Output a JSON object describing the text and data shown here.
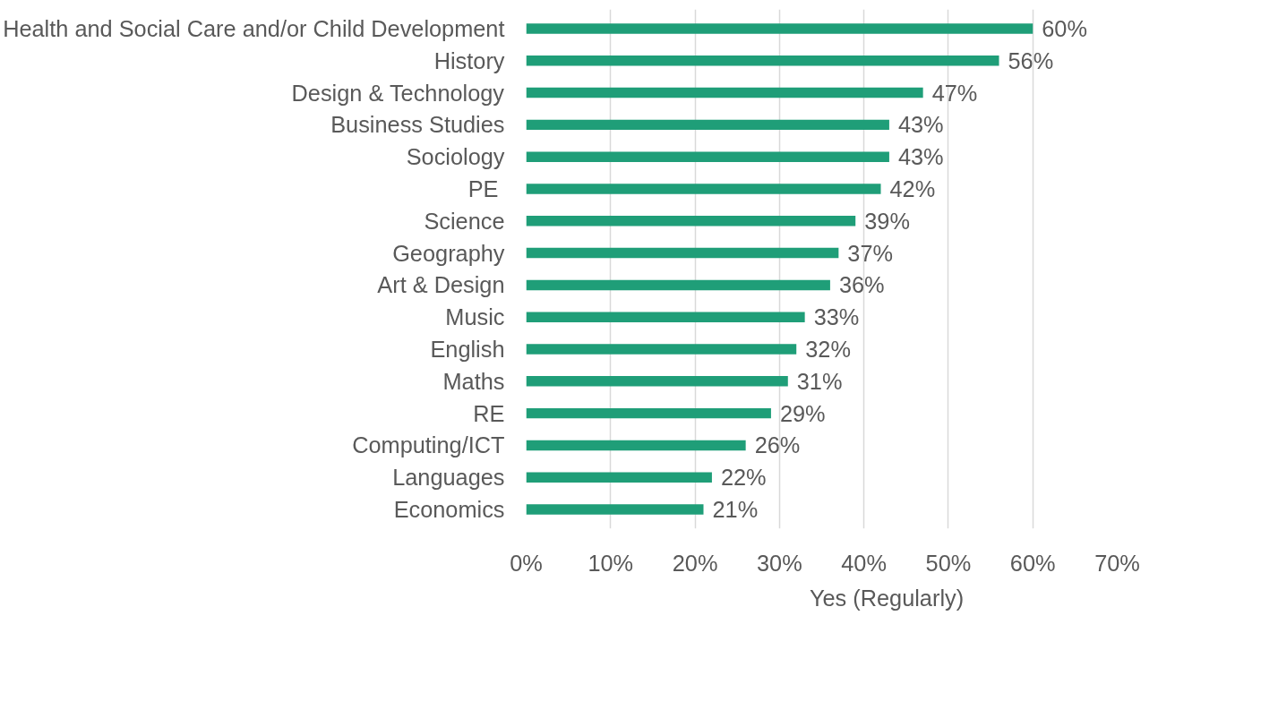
{
  "chart_data": {
    "type": "bar",
    "orientation": "horizontal",
    "categories": [
      "Health and Social Care and/or Child Development",
      "History",
      "Design & Technology",
      "Business Studies",
      "Sociology",
      "PE ",
      "Science",
      "Geography",
      "Art & Design",
      "Music",
      "English",
      "Maths",
      "RE",
      "Computing/ICT",
      "Languages",
      "Economics"
    ],
    "series": [
      {
        "name": "Yes (Regularly)",
        "color": "#1f9e78",
        "values": [
          60,
          56,
          47,
          43,
          43,
          42,
          39,
          37,
          36,
          33,
          32,
          31,
          29,
          26,
          22,
          21
        ],
        "value_labels": [
          "60%",
          "56%",
          "47%",
          "43%",
          "43%",
          "42%",
          "39%",
          "37%",
          "36%",
          "33%",
          "32%",
          "31%",
          "29%",
          "26%",
          "22%",
          "21%"
        ]
      }
    ],
    "xlim": [
      0,
      70
    ],
    "xticks": [
      {
        "value": 0,
        "label": "0%"
      },
      {
        "value": 10,
        "label": "10%"
      },
      {
        "value": 20,
        "label": "20%"
      },
      {
        "value": 30,
        "label": "30%"
      },
      {
        "value": 40,
        "label": "40%"
      },
      {
        "value": 50,
        "label": "50%"
      },
      {
        "value": 60,
        "label": "60%"
      },
      {
        "value": 70,
        "label": "70%"
      }
    ],
    "grid": "x",
    "legend": "bottom"
  }
}
